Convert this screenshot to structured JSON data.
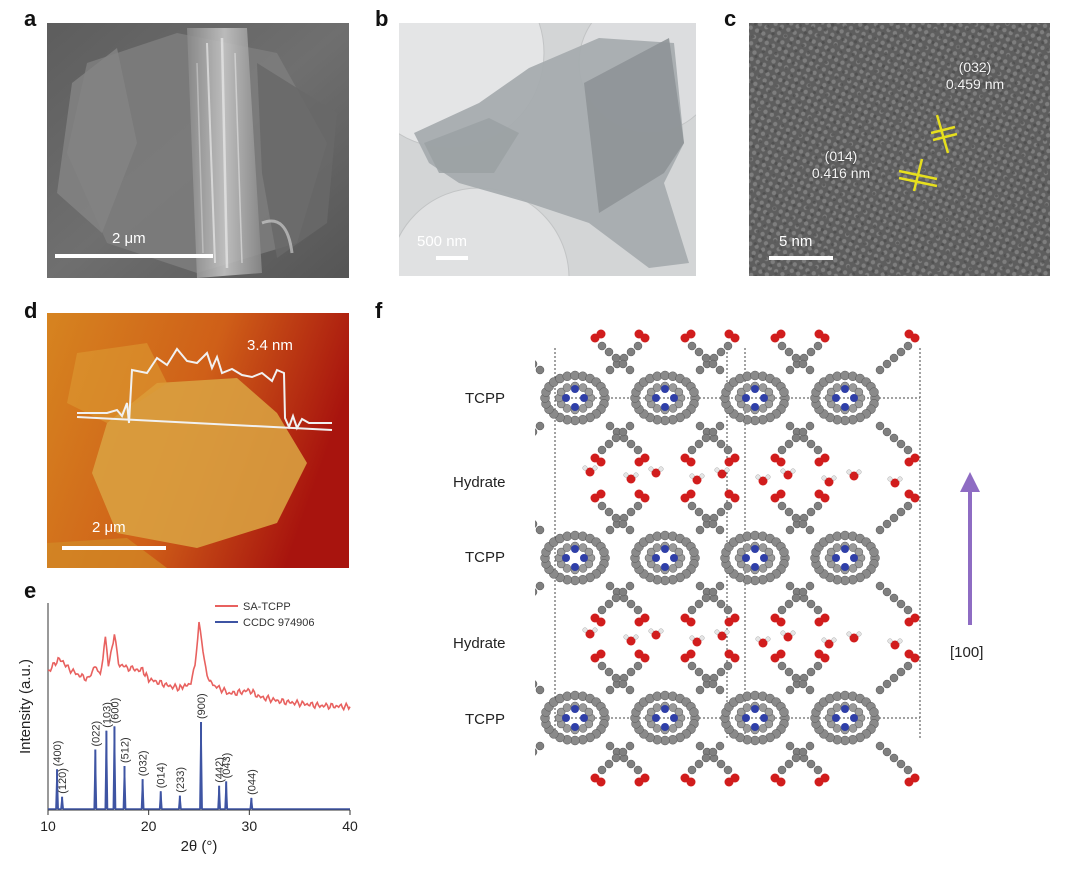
{
  "panels": {
    "a": {
      "letter": "a",
      "scalebar": "2 μm"
    },
    "b": {
      "letter": "b",
      "scalebar": "500 nm"
    },
    "c": {
      "letter": "c",
      "scalebar": "5 nm",
      "label_032": {
        "plane": "(032)",
        "spacing": "0.459 nm"
      },
      "label_014": {
        "plane": "(014)",
        "spacing": "0.416 nm"
      }
    },
    "d": {
      "letter": "d",
      "scalebar": "2 μm",
      "height_label": "3.4 nm"
    },
    "e": {
      "letter": "e"
    },
    "f": {
      "letter": "f",
      "layer_labels": [
        "TCPP",
        "Hydrate",
        "TCPP",
        "Hydrate",
        "TCPP"
      ],
      "direction_label": "[100]",
      "arrow_color": "#8e6cc3"
    }
  },
  "colors": {
    "sa_tcpp": "#e8615f",
    "ccdc": "#3e54a3",
    "nitrogen": "#2f3fa8",
    "oxygen": "#d11d1d",
    "carbon": "#7a7a7a"
  },
  "chart_data": {
    "type": "line",
    "title": "",
    "xlabel": "2θ (°)",
    "ylabel": "Intensity (a.u.)",
    "xlim": [
      10,
      40
    ],
    "xticks": [
      10,
      20,
      30,
      40
    ],
    "legend": {
      "placement": "top-right"
    },
    "series": [
      {
        "name": "SA-TCPP",
        "color": "#e8615f",
        "points": [
          [
            10.0,
            0.35
          ],
          [
            10.5,
            0.4
          ],
          [
            11.0,
            0.46
          ],
          [
            11.5,
            0.44
          ],
          [
            12.0,
            0.38
          ],
          [
            13.0,
            0.32
          ],
          [
            14.0,
            0.28
          ],
          [
            14.8,
            0.4
          ],
          [
            15.2,
            0.32
          ],
          [
            15.7,
            0.64
          ],
          [
            16.0,
            0.4
          ],
          [
            16.6,
            0.68
          ],
          [
            17.0,
            0.42
          ],
          [
            18.0,
            0.38
          ],
          [
            19.4,
            0.36
          ],
          [
            20.0,
            0.28
          ],
          [
            21.0,
            0.25
          ],
          [
            22.0,
            0.22
          ],
          [
            23.0,
            0.2
          ],
          [
            24.2,
            0.24
          ],
          [
            24.6,
            0.4
          ],
          [
            25.0,
            0.8
          ],
          [
            25.4,
            0.56
          ],
          [
            25.8,
            0.3
          ],
          [
            26.5,
            0.22
          ],
          [
            27.0,
            0.2
          ],
          [
            28.0,
            0.15
          ],
          [
            29.0,
            0.16
          ],
          [
            30.0,
            0.18
          ],
          [
            31.0,
            0.12
          ],
          [
            32.0,
            0.1
          ],
          [
            33.0,
            0.08
          ],
          [
            35.0,
            0.06
          ],
          [
            37.0,
            0.04
          ],
          [
            40.0,
            0.03
          ]
        ]
      },
      {
        "name": "CCDC 974906",
        "color": "#3e54a3",
        "peaks": [
          {
            "x": 10.9,
            "y": 0.37,
            "label": "(400)"
          },
          {
            "x": 11.4,
            "y": 0.12,
            "label": "(120)"
          },
          {
            "x": 14.7,
            "y": 0.55,
            "label": "(022)"
          },
          {
            "x": 15.8,
            "y": 0.72,
            "label": "(103)"
          },
          {
            "x": 16.6,
            "y": 0.76,
            "label": "(600)"
          },
          {
            "x": 17.6,
            "y": 0.4,
            "label": "(512)"
          },
          {
            "x": 19.4,
            "y": 0.28,
            "label": "(032)"
          },
          {
            "x": 21.2,
            "y": 0.17,
            "label": "(014)"
          },
          {
            "x": 23.1,
            "y": 0.13,
            "label": "(233)"
          },
          {
            "x": 25.2,
            "y": 0.8,
            "label": "(900)"
          },
          {
            "x": 27.0,
            "y": 0.22,
            "label": "(442)"
          },
          {
            "x": 27.7,
            "y": 0.26,
            "label": "(043)"
          },
          {
            "x": 30.2,
            "y": 0.11,
            "label": "(044)"
          }
        ]
      }
    ]
  }
}
